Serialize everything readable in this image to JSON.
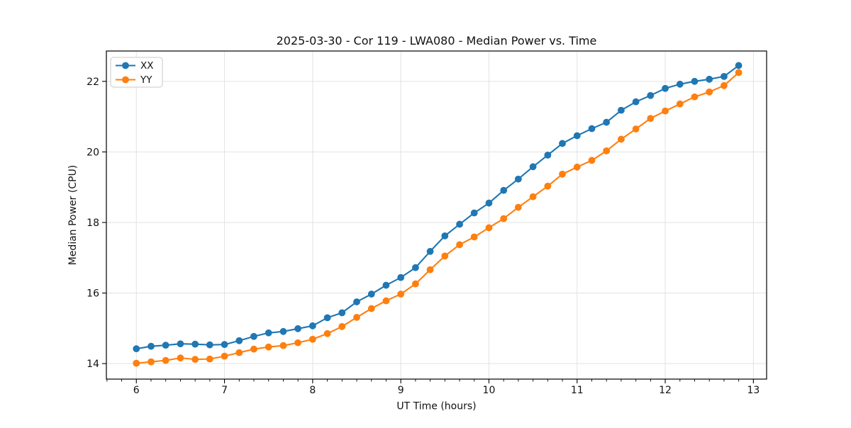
{
  "chart_data": {
    "type": "line",
    "title": "2025-03-30 - Cor 119 - LWA080 - Median Power vs. Time",
    "xlabel": "UT Time (hours)",
    "ylabel": "Median Power (CPU)",
    "xlim": [
      5.66,
      13.15
    ],
    "ylim": [
      13.56,
      22.86
    ],
    "xticks": [
      6,
      7,
      8,
      9,
      10,
      11,
      12,
      13
    ],
    "yticks": [
      14,
      16,
      18,
      20,
      22
    ],
    "x_minor_interval": 0.16667,
    "grid": true,
    "legend_position": "upper left",
    "marker": "circle",
    "x": [
      6.0,
      6.167,
      6.333,
      6.5,
      6.667,
      6.833,
      7.0,
      7.167,
      7.333,
      7.5,
      7.667,
      7.833,
      8.0,
      8.167,
      8.333,
      8.5,
      8.667,
      8.833,
      9.0,
      9.167,
      9.333,
      9.5,
      9.667,
      9.833,
      10.0,
      10.167,
      10.333,
      10.5,
      10.667,
      10.833,
      11.0,
      11.167,
      11.333,
      11.5,
      11.667,
      11.833,
      12.0,
      12.167,
      12.333,
      12.5,
      12.667,
      12.833
    ],
    "series": [
      {
        "name": "XX",
        "color": "#1f77b4",
        "values": [
          14.42,
          14.49,
          14.52,
          14.56,
          14.55,
          14.53,
          14.54,
          14.65,
          14.77,
          14.87,
          14.91,
          14.99,
          15.07,
          15.3,
          15.44,
          15.75,
          15.97,
          16.22,
          16.44,
          16.72,
          17.18,
          17.62,
          17.95,
          18.27,
          18.55,
          18.91,
          19.23,
          19.58,
          19.91,
          20.24,
          20.46,
          20.66,
          20.84,
          21.18,
          21.42,
          21.6,
          21.8,
          21.92,
          22.0,
          22.06,
          22.14,
          22.45
        ]
      },
      {
        "name": "YY",
        "color": "#ff7f0e",
        "values": [
          14.01,
          14.05,
          14.09,
          14.16,
          14.12,
          14.13,
          14.21,
          14.31,
          14.41,
          14.47,
          14.51,
          14.59,
          14.69,
          14.85,
          15.05,
          15.31,
          15.56,
          15.78,
          15.97,
          16.26,
          16.66,
          17.05,
          17.37,
          17.59,
          17.85,
          18.11,
          18.43,
          18.73,
          19.03,
          19.37,
          19.57,
          19.76,
          20.03,
          20.36,
          20.65,
          20.95,
          21.16,
          21.36,
          21.56,
          21.7,
          21.88,
          22.25
        ]
      }
    ]
  },
  "colors": {
    "grid": "#e2e2e2",
    "spine": "#000000",
    "legend_border": "#c9c9c9",
    "background": "#ffffff"
  }
}
